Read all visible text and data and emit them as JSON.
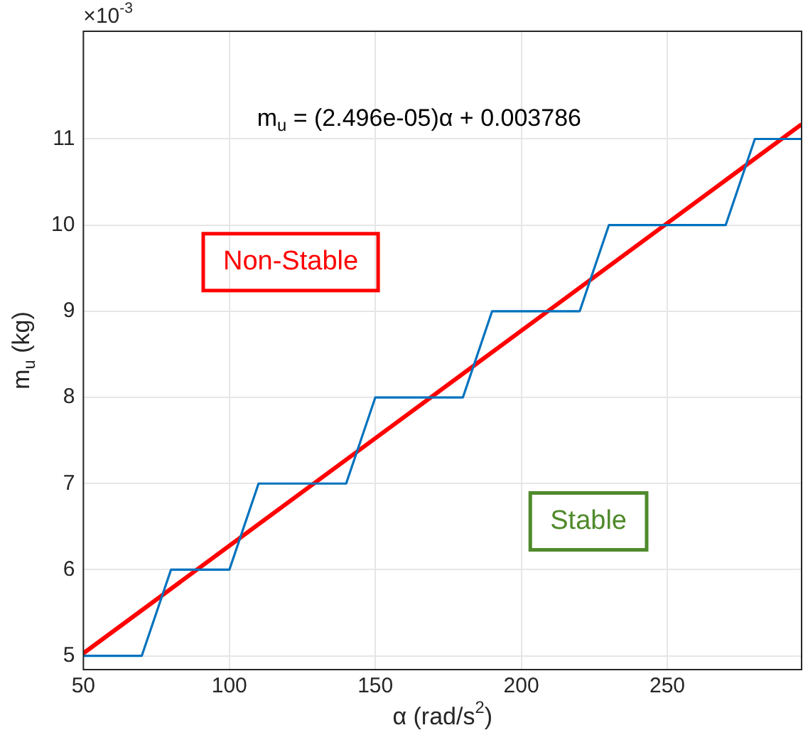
{
  "chart_data": {
    "type": "line",
    "xlabel": "α (rad/s$^{2}$)",
    "ylabel": "m$_{u}$ (kg)",
    "xlim": [
      50,
      296
    ],
    "xticks": [
      50,
      100,
      150,
      200,
      250
    ],
    "ylim": [
      4.84,
      12.25
    ],
    "yticks": [
      5,
      6,
      7,
      8,
      9,
      10,
      11
    ],
    "grid": true,
    "legend": false,
    "marker": "none",
    "line_style": "solid",
    "series": [
      {
        "type": "line",
        "color": "#0072bd",
        "x": [
          50,
          70,
          80,
          100,
          110,
          140,
          150,
          180,
          190,
          220,
          230,
          270,
          280,
          296
        ],
        "values": [
          5,
          5,
          6,
          6,
          7,
          7,
          8,
          8,
          9,
          9,
          10,
          10,
          11,
          11
        ]
      },
      {
        "type": "line",
        "color": "#ff0000",
        "x": [
          50,
          296
        ],
        "values": [
          5.03,
          11.17
        ]
      }
    ],
    "annotations": [
      "×10$^{-3}$",
      "m$_{u}$ = (2.496e-05)α + 0.003786",
      "Non-Stable",
      "Stable"
    ]
  }
}
